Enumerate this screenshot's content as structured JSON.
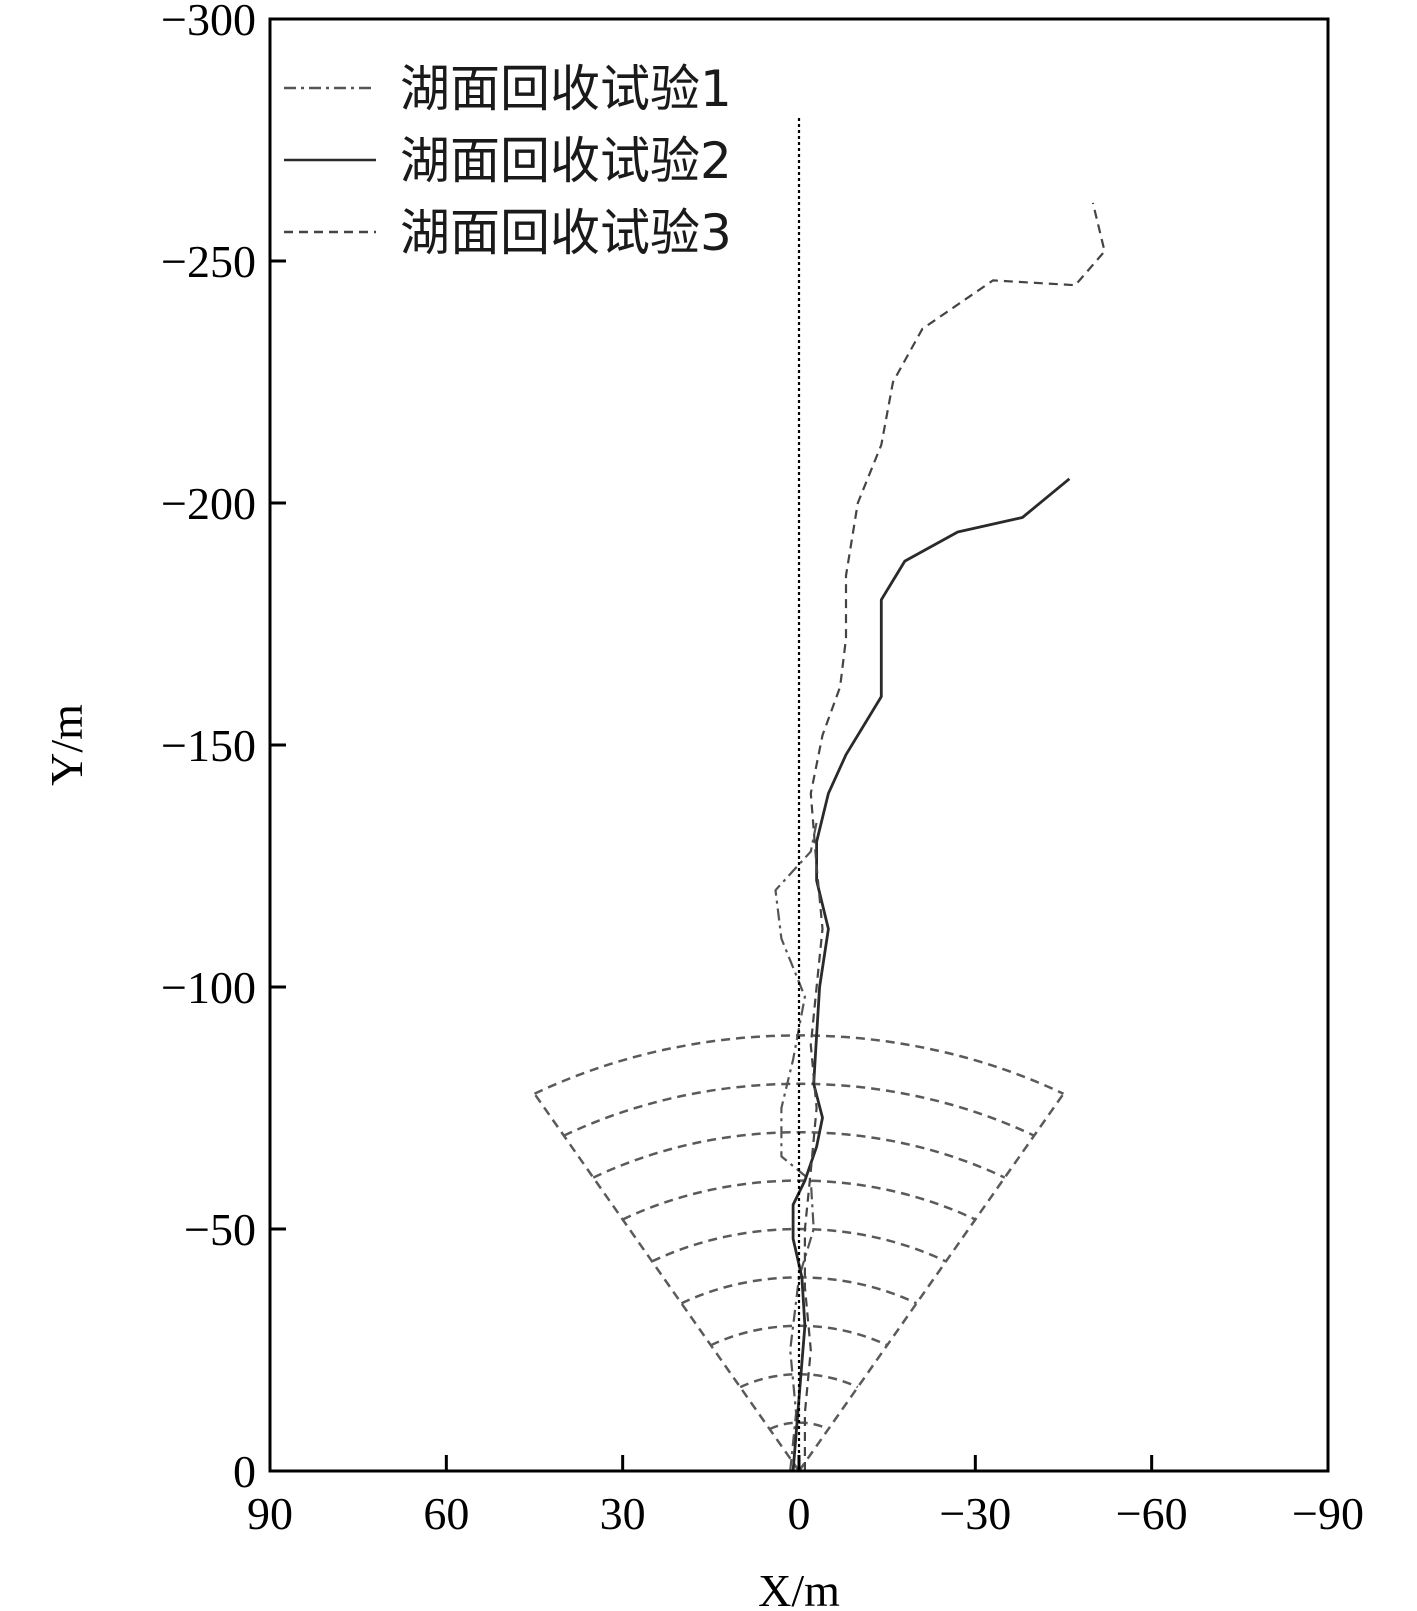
{
  "chart_data": {
    "type": "line",
    "xlabel": "X/m",
    "ylabel": "Y/m",
    "xlim": [
      90,
      -90
    ],
    "ylim": [
      0,
      -300
    ],
    "x_ticks": [
      "90",
      "60",
      "30",
      "0",
      "−30",
      "−60",
      "−90"
    ],
    "y_ticks": [
      "0",
      "−50",
      "−100",
      "−150",
      "−200",
      "−250",
      "−300"
    ],
    "legend_position": "top-left",
    "series": [
      {
        "name": "湖面回收试验1",
        "style": "dash-dot",
        "color": "#555555",
        "points": [
          [
            1.5,
            0
          ],
          [
            0.5,
            -12
          ],
          [
            1.5,
            -25
          ],
          [
            0,
            -40
          ],
          [
            -2.5,
            -50
          ],
          [
            -2,
            -60
          ],
          [
            3,
            -65
          ],
          [
            3,
            -75
          ],
          [
            1,
            -85
          ],
          [
            -1,
            -98
          ],
          [
            3,
            -110
          ],
          [
            4,
            -120
          ],
          [
            -2,
            -128
          ],
          [
            -3,
            -134
          ]
        ]
      },
      {
        "name": "湖面回收试验2",
        "style": "solid",
        "color": "#2a2a2a",
        "points": [
          [
            1,
            0
          ],
          [
            0,
            -15
          ],
          [
            -1,
            -30
          ],
          [
            -0.5,
            -40
          ],
          [
            1,
            -48
          ],
          [
            1,
            -55
          ],
          [
            -1,
            -60
          ],
          [
            -3,
            -67
          ],
          [
            -4,
            -73
          ],
          [
            -2.5,
            -80
          ],
          [
            -3,
            -90
          ],
          [
            -3.5,
            -100
          ],
          [
            -5,
            -112
          ],
          [
            -3,
            -122
          ],
          [
            -3,
            -130
          ],
          [
            -5,
            -140
          ],
          [
            -8,
            -148
          ],
          [
            -14,
            -160
          ],
          [
            -14,
            -170
          ],
          [
            -14,
            -180
          ],
          [
            -18,
            -188
          ],
          [
            -27,
            -194
          ],
          [
            -38,
            -197
          ],
          [
            -46,
            -205
          ]
        ]
      },
      {
        "name": "湖面回收试验3",
        "style": "dashed",
        "color": "#444444",
        "points": [
          [
            -1,
            0
          ],
          [
            -1,
            -12
          ],
          [
            -2,
            -25
          ],
          [
            -1,
            -38
          ],
          [
            -1,
            -50
          ],
          [
            -2,
            -62
          ],
          [
            -3,
            -75
          ],
          [
            -2,
            -88
          ],
          [
            -3,
            -100
          ],
          [
            -4,
            -112
          ],
          [
            -3,
            -125
          ],
          [
            -2,
            -140
          ],
          [
            -4,
            -152
          ],
          [
            -7,
            -162
          ],
          [
            -8,
            -172
          ],
          [
            -8,
            -185
          ],
          [
            -10,
            -200
          ],
          [
            -14,
            -212
          ],
          [
            -16,
            -225
          ],
          [
            -21,
            -236
          ],
          [
            -33,
            -246
          ],
          [
            -47,
            -245
          ],
          [
            -52,
            -252
          ],
          [
            -50,
            -262
          ]
        ]
      },
      {
        "name": "",
        "style": "dotted",
        "color": "#000000",
        "points": [
          [
            0,
            0
          ],
          [
            0,
            -280
          ]
        ]
      }
    ],
    "annotations": [
      {
        "type": "sector",
        "apex": [
          0,
          0
        ],
        "radii": [
          10,
          20,
          30,
          40,
          50,
          60,
          70,
          80,
          90
        ],
        "angle_deg": 30,
        "style": "dashed",
        "color": "#5a5a5a"
      }
    ]
  }
}
